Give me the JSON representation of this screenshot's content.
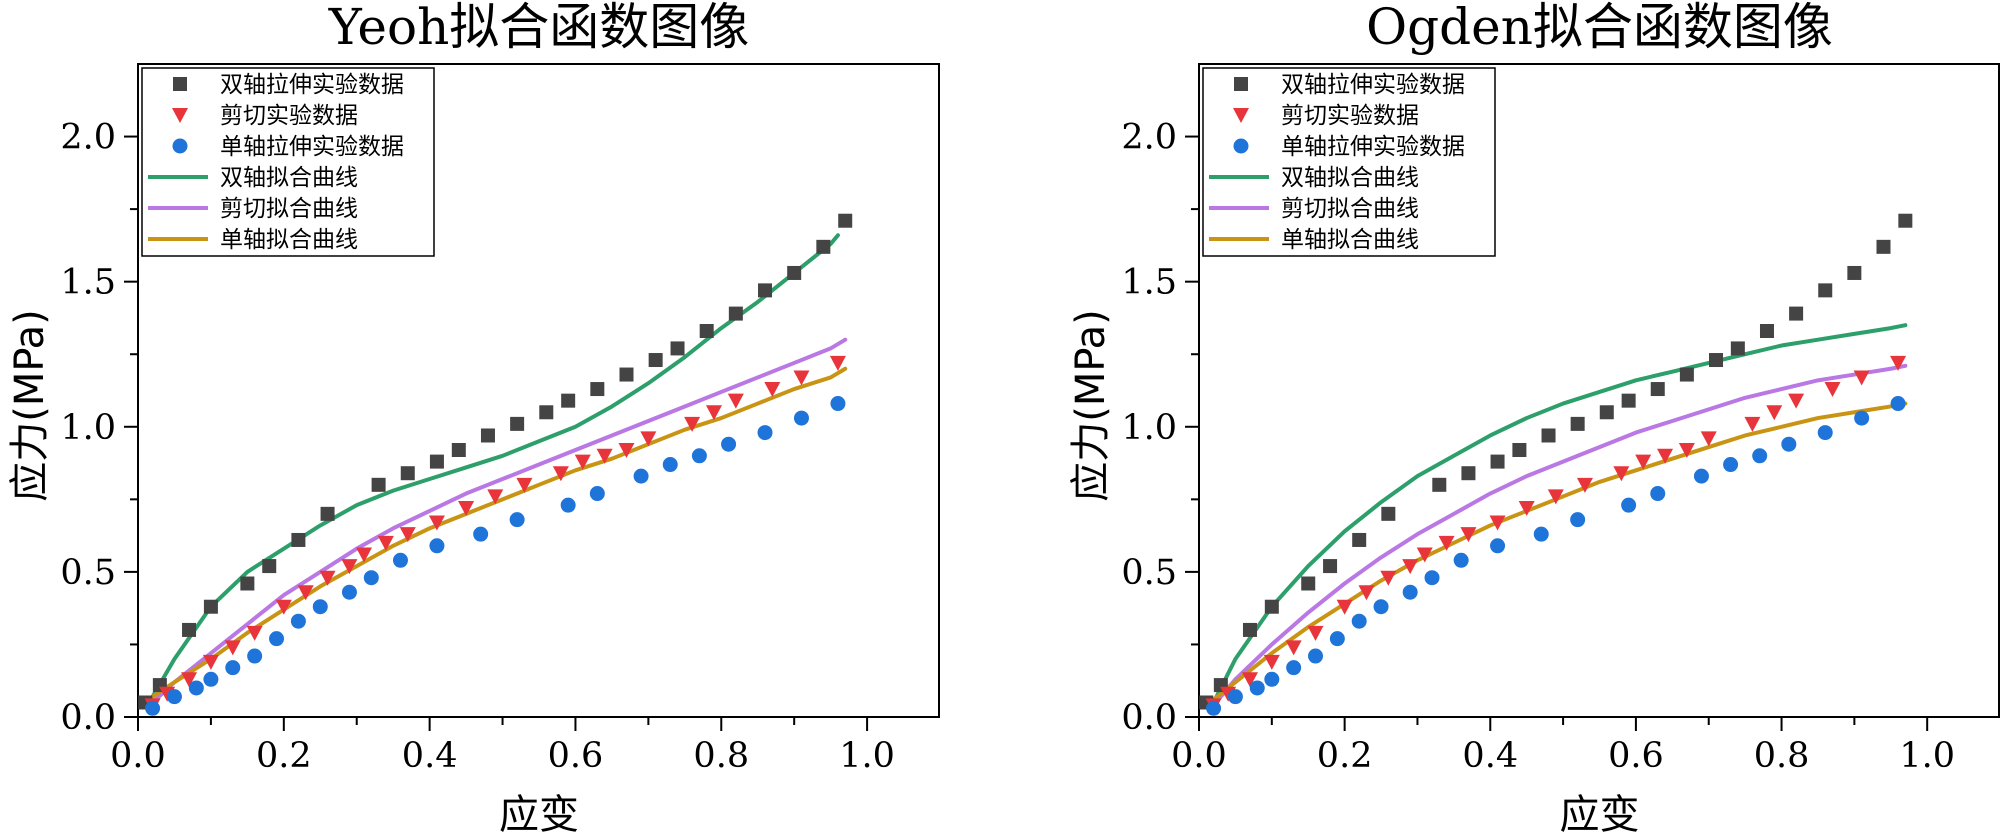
{
  "colors": {
    "biaxial_data": "#444444",
    "shear_data": "#e8353b",
    "uniaxial_data": "#1f74d9",
    "biaxial_fit": "#2c9f6a",
    "shear_fit": "#b978e3",
    "uniaxial_fit": "#c99414"
  },
  "chart_data": [
    {
      "type": "scatter",
      "title": "Yeoh拟合函数图像",
      "xlabel": "应变",
      "ylabel": "应力(MPa)",
      "xlim": [
        0,
        1.1
      ],
      "ylim": [
        0,
        2.25
      ],
      "xticks": [
        0.0,
        0.2,
        0.4,
        0.6,
        0.8,
        1.0
      ],
      "xtick_labels": [
        "0.0",
        "0.2",
        "0.4",
        "0.6",
        "0.8",
        "1.0"
      ],
      "yticks": [
        0.0,
        0.5,
        1.0,
        1.5,
        2.0
      ],
      "ytick_labels": [
        "0.0",
        "0.5",
        "1.0",
        "1.5",
        "2.0"
      ],
      "legend_position": "top-left",
      "series": [
        {
          "name": "双轴拉伸实验数据",
          "kind": "scatter",
          "marker": "square",
          "color": "#444444",
          "x": [
            0.01,
            0.03,
            0.07,
            0.1,
            0.15,
            0.18,
            0.22,
            0.26,
            0.33,
            0.37,
            0.41,
            0.44,
            0.48,
            0.52,
            0.56,
            0.59,
            0.63,
            0.67,
            0.71,
            0.74,
            0.78,
            0.82,
            0.86,
            0.9,
            0.94,
            0.97
          ],
          "y": [
            0.05,
            0.11,
            0.3,
            0.38,
            0.46,
            0.52,
            0.61,
            0.7,
            0.8,
            0.84,
            0.88,
            0.92,
            0.97,
            1.01,
            1.05,
            1.09,
            1.13,
            1.18,
            1.23,
            1.27,
            1.33,
            1.39,
            1.47,
            1.53,
            1.62,
            1.71
          ]
        },
        {
          "name": "剪切实验数据",
          "kind": "scatter",
          "marker": "triangle-down",
          "color": "#e8353b",
          "x": [
            0.02,
            0.04,
            0.07,
            0.1,
            0.13,
            0.16,
            0.2,
            0.23,
            0.26,
            0.29,
            0.31,
            0.34,
            0.37,
            0.41,
            0.45,
            0.49,
            0.53,
            0.58,
            0.61,
            0.64,
            0.67,
            0.7,
            0.76,
            0.79,
            0.82,
            0.87,
            0.91,
            0.96
          ],
          "y": [
            0.04,
            0.08,
            0.13,
            0.19,
            0.24,
            0.29,
            0.38,
            0.43,
            0.48,
            0.52,
            0.56,
            0.6,
            0.63,
            0.67,
            0.72,
            0.76,
            0.8,
            0.84,
            0.88,
            0.9,
            0.92,
            0.96,
            1.01,
            1.05,
            1.09,
            1.13,
            1.17,
            1.22
          ]
        },
        {
          "name": "单轴拉伸实验数据",
          "kind": "scatter",
          "marker": "circle",
          "color": "#1f74d9",
          "x": [
            0.02,
            0.05,
            0.08,
            0.1,
            0.13,
            0.16,
            0.19,
            0.22,
            0.25,
            0.29,
            0.32,
            0.36,
            0.41,
            0.47,
            0.52,
            0.59,
            0.63,
            0.69,
            0.73,
            0.77,
            0.81,
            0.86,
            0.91,
            0.96
          ],
          "y": [
            0.03,
            0.07,
            0.1,
            0.13,
            0.17,
            0.21,
            0.27,
            0.33,
            0.38,
            0.43,
            0.48,
            0.54,
            0.59,
            0.63,
            0.68,
            0.73,
            0.77,
            0.83,
            0.87,
            0.9,
            0.94,
            0.98,
            1.03,
            1.08
          ]
        },
        {
          "name": "双轴拟合曲线",
          "kind": "line",
          "color": "#2c9f6a",
          "x": [
            0.02,
            0.05,
            0.1,
            0.15,
            0.2,
            0.25,
            0.3,
            0.35,
            0.4,
            0.45,
            0.5,
            0.55,
            0.6,
            0.65,
            0.7,
            0.75,
            0.8,
            0.85,
            0.9,
            0.95,
            0.96
          ],
          "y": [
            0.07,
            0.2,
            0.38,
            0.5,
            0.58,
            0.66,
            0.73,
            0.78,
            0.82,
            0.86,
            0.9,
            0.95,
            1.0,
            1.07,
            1.15,
            1.24,
            1.34,
            1.43,
            1.53,
            1.63,
            1.66
          ]
        },
        {
          "name": "剪切拟合曲线",
          "kind": "line",
          "color": "#b978e3",
          "x": [
            0.02,
            0.05,
            0.1,
            0.15,
            0.2,
            0.25,
            0.3,
            0.35,
            0.4,
            0.45,
            0.5,
            0.55,
            0.6,
            0.65,
            0.7,
            0.75,
            0.8,
            0.85,
            0.9,
            0.95,
            0.97
          ],
          "y": [
            0.05,
            0.12,
            0.22,
            0.32,
            0.42,
            0.5,
            0.58,
            0.65,
            0.71,
            0.77,
            0.82,
            0.87,
            0.92,
            0.97,
            1.02,
            1.07,
            1.12,
            1.17,
            1.22,
            1.27,
            1.3
          ]
        },
        {
          "name": "单轴拟合曲线",
          "kind": "line",
          "color": "#c99414",
          "x": [
            0.02,
            0.05,
            0.1,
            0.15,
            0.2,
            0.25,
            0.3,
            0.35,
            0.4,
            0.45,
            0.5,
            0.55,
            0.6,
            0.65,
            0.7,
            0.75,
            0.8,
            0.85,
            0.9,
            0.95,
            0.97
          ],
          "y": [
            0.07,
            0.12,
            0.2,
            0.29,
            0.37,
            0.45,
            0.52,
            0.59,
            0.65,
            0.7,
            0.75,
            0.8,
            0.85,
            0.89,
            0.94,
            0.99,
            1.03,
            1.08,
            1.13,
            1.17,
            1.2
          ]
        }
      ]
    },
    {
      "type": "scatter",
      "title": "Ogden拟合函数图像",
      "xlabel": "应变",
      "ylabel": "应力(MPa)",
      "xlim": [
        0,
        1.1
      ],
      "ylim": [
        0,
        2.25
      ],
      "xticks": [
        0.0,
        0.2,
        0.4,
        0.6,
        0.8,
        1.0
      ],
      "xtick_labels": [
        "0.0",
        "0.2",
        "0.4",
        "0.6",
        "0.8",
        "1.0"
      ],
      "yticks": [
        0.0,
        0.5,
        1.0,
        1.5,
        2.0
      ],
      "ytick_labels": [
        "0.0",
        "0.5",
        "1.0",
        "1.5",
        "2.0"
      ],
      "legend_position": "top-left",
      "series": [
        {
          "name": "双轴拉伸实验数据",
          "kind": "scatter",
          "marker": "square",
          "color": "#444444",
          "x": [
            0.01,
            0.03,
            0.07,
            0.1,
            0.15,
            0.18,
            0.22,
            0.26,
            0.33,
            0.37,
            0.41,
            0.44,
            0.48,
            0.52,
            0.56,
            0.59,
            0.63,
            0.67,
            0.71,
            0.74,
            0.78,
            0.82,
            0.86,
            0.9,
            0.94,
            0.97
          ],
          "y": [
            0.05,
            0.11,
            0.3,
            0.38,
            0.46,
            0.52,
            0.61,
            0.7,
            0.8,
            0.84,
            0.88,
            0.92,
            0.97,
            1.01,
            1.05,
            1.09,
            1.13,
            1.18,
            1.23,
            1.27,
            1.33,
            1.39,
            1.47,
            1.53,
            1.62,
            1.71
          ]
        },
        {
          "name": "剪切实验数据",
          "kind": "scatter",
          "marker": "triangle-down",
          "color": "#e8353b",
          "x": [
            0.02,
            0.04,
            0.07,
            0.1,
            0.13,
            0.16,
            0.2,
            0.23,
            0.26,
            0.29,
            0.31,
            0.34,
            0.37,
            0.41,
            0.45,
            0.49,
            0.53,
            0.58,
            0.61,
            0.64,
            0.67,
            0.7,
            0.76,
            0.79,
            0.82,
            0.87,
            0.91,
            0.96
          ],
          "y": [
            0.04,
            0.08,
            0.13,
            0.19,
            0.24,
            0.29,
            0.38,
            0.43,
            0.48,
            0.52,
            0.56,
            0.6,
            0.63,
            0.67,
            0.72,
            0.76,
            0.8,
            0.84,
            0.88,
            0.9,
            0.92,
            0.96,
            1.01,
            1.05,
            1.09,
            1.13,
            1.17,
            1.22
          ]
        },
        {
          "name": "单轴拉伸实验数据",
          "kind": "scatter",
          "marker": "circle",
          "color": "#1f74d9",
          "x": [
            0.02,
            0.05,
            0.08,
            0.1,
            0.13,
            0.16,
            0.19,
            0.22,
            0.25,
            0.29,
            0.32,
            0.36,
            0.41,
            0.47,
            0.52,
            0.59,
            0.63,
            0.69,
            0.73,
            0.77,
            0.81,
            0.86,
            0.91,
            0.96
          ],
          "y": [
            0.03,
            0.07,
            0.1,
            0.13,
            0.17,
            0.21,
            0.27,
            0.33,
            0.38,
            0.43,
            0.48,
            0.54,
            0.59,
            0.63,
            0.68,
            0.73,
            0.77,
            0.83,
            0.87,
            0.9,
            0.94,
            0.98,
            1.03,
            1.08
          ]
        },
        {
          "name": "双轴拟合曲线",
          "kind": "line",
          "color": "#2c9f6a",
          "x": [
            0.02,
            0.05,
            0.1,
            0.15,
            0.2,
            0.25,
            0.3,
            0.35,
            0.4,
            0.45,
            0.5,
            0.55,
            0.6,
            0.65,
            0.7,
            0.75,
            0.8,
            0.85,
            0.9,
            0.95,
            0.97
          ],
          "y": [
            0.05,
            0.2,
            0.38,
            0.52,
            0.64,
            0.74,
            0.83,
            0.9,
            0.97,
            1.03,
            1.08,
            1.12,
            1.16,
            1.19,
            1.22,
            1.25,
            1.28,
            1.3,
            1.32,
            1.34,
            1.35
          ]
        },
        {
          "name": "剪切拟合曲线",
          "kind": "line",
          "color": "#b978e3",
          "x": [
            0.02,
            0.05,
            0.1,
            0.15,
            0.2,
            0.25,
            0.3,
            0.35,
            0.4,
            0.45,
            0.5,
            0.55,
            0.6,
            0.65,
            0.7,
            0.75,
            0.8,
            0.85,
            0.9,
            0.95,
            0.97
          ],
          "y": [
            0.04,
            0.13,
            0.25,
            0.36,
            0.46,
            0.55,
            0.63,
            0.7,
            0.77,
            0.83,
            0.88,
            0.93,
            0.98,
            1.02,
            1.06,
            1.1,
            1.13,
            1.16,
            1.18,
            1.2,
            1.21
          ]
        },
        {
          "name": "单轴拟合曲线",
          "kind": "line",
          "color": "#c99414",
          "x": [
            0.02,
            0.05,
            0.1,
            0.15,
            0.2,
            0.25,
            0.3,
            0.35,
            0.4,
            0.45,
            0.5,
            0.55,
            0.6,
            0.65,
            0.7,
            0.75,
            0.8,
            0.85,
            0.9,
            0.95,
            0.97
          ],
          "y": [
            0.06,
            0.12,
            0.22,
            0.31,
            0.39,
            0.47,
            0.54,
            0.6,
            0.66,
            0.71,
            0.76,
            0.81,
            0.85,
            0.89,
            0.93,
            0.97,
            1.0,
            1.03,
            1.05,
            1.07,
            1.08
          ]
        }
      ]
    }
  ]
}
